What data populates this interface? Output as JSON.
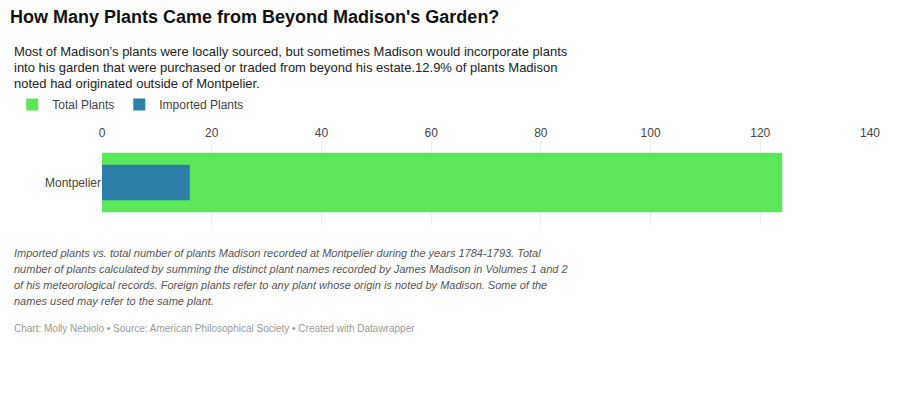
{
  "chart_data": {
    "type": "bar",
    "orientation": "horizontal",
    "title": "How Many Plants Came from Beyond Madison's Garden?",
    "subtitle": [
      "Most of Madison’s plants were locally sourced, but sometimes Madison would incorporate plants",
      "into his garden that were purchased or traded from beyond his estate.​12.9% of plants Madison",
      "noted had originated outside of Montpelier."
    ],
    "categories": [
      "Montpelier"
    ],
    "series": [
      {
        "name": "Total Plants",
        "color": "#5ce65c",
        "values": [
          124
        ]
      },
      {
        "name": "Imported Plants",
        "color": "#2e7fa8",
        "values": [
          16
        ]
      }
    ],
    "xlim": [
      0,
      140
    ],
    "xticks": [
      0,
      20,
      40,
      60,
      80,
      100,
      120,
      140
    ],
    "grid": true,
    "legend": "upper left",
    "annotations": [
      "Imported plants vs. total number of plants Madison recorded at Montpelier during the years 1784-1793. Total",
      "number of plants calculated by summing the distinct plant names recorded by James Madison in Volumes 1 and 2",
      "of his meteorological records. Foreign plants refer to any plant whose origin is noted by Madison. Some of the",
      "names used may refer to the same plant.",
      "Chart: Molly Nebiolo • Source: American Philosophical Society • Created with Datawrapper"
    ]
  }
}
